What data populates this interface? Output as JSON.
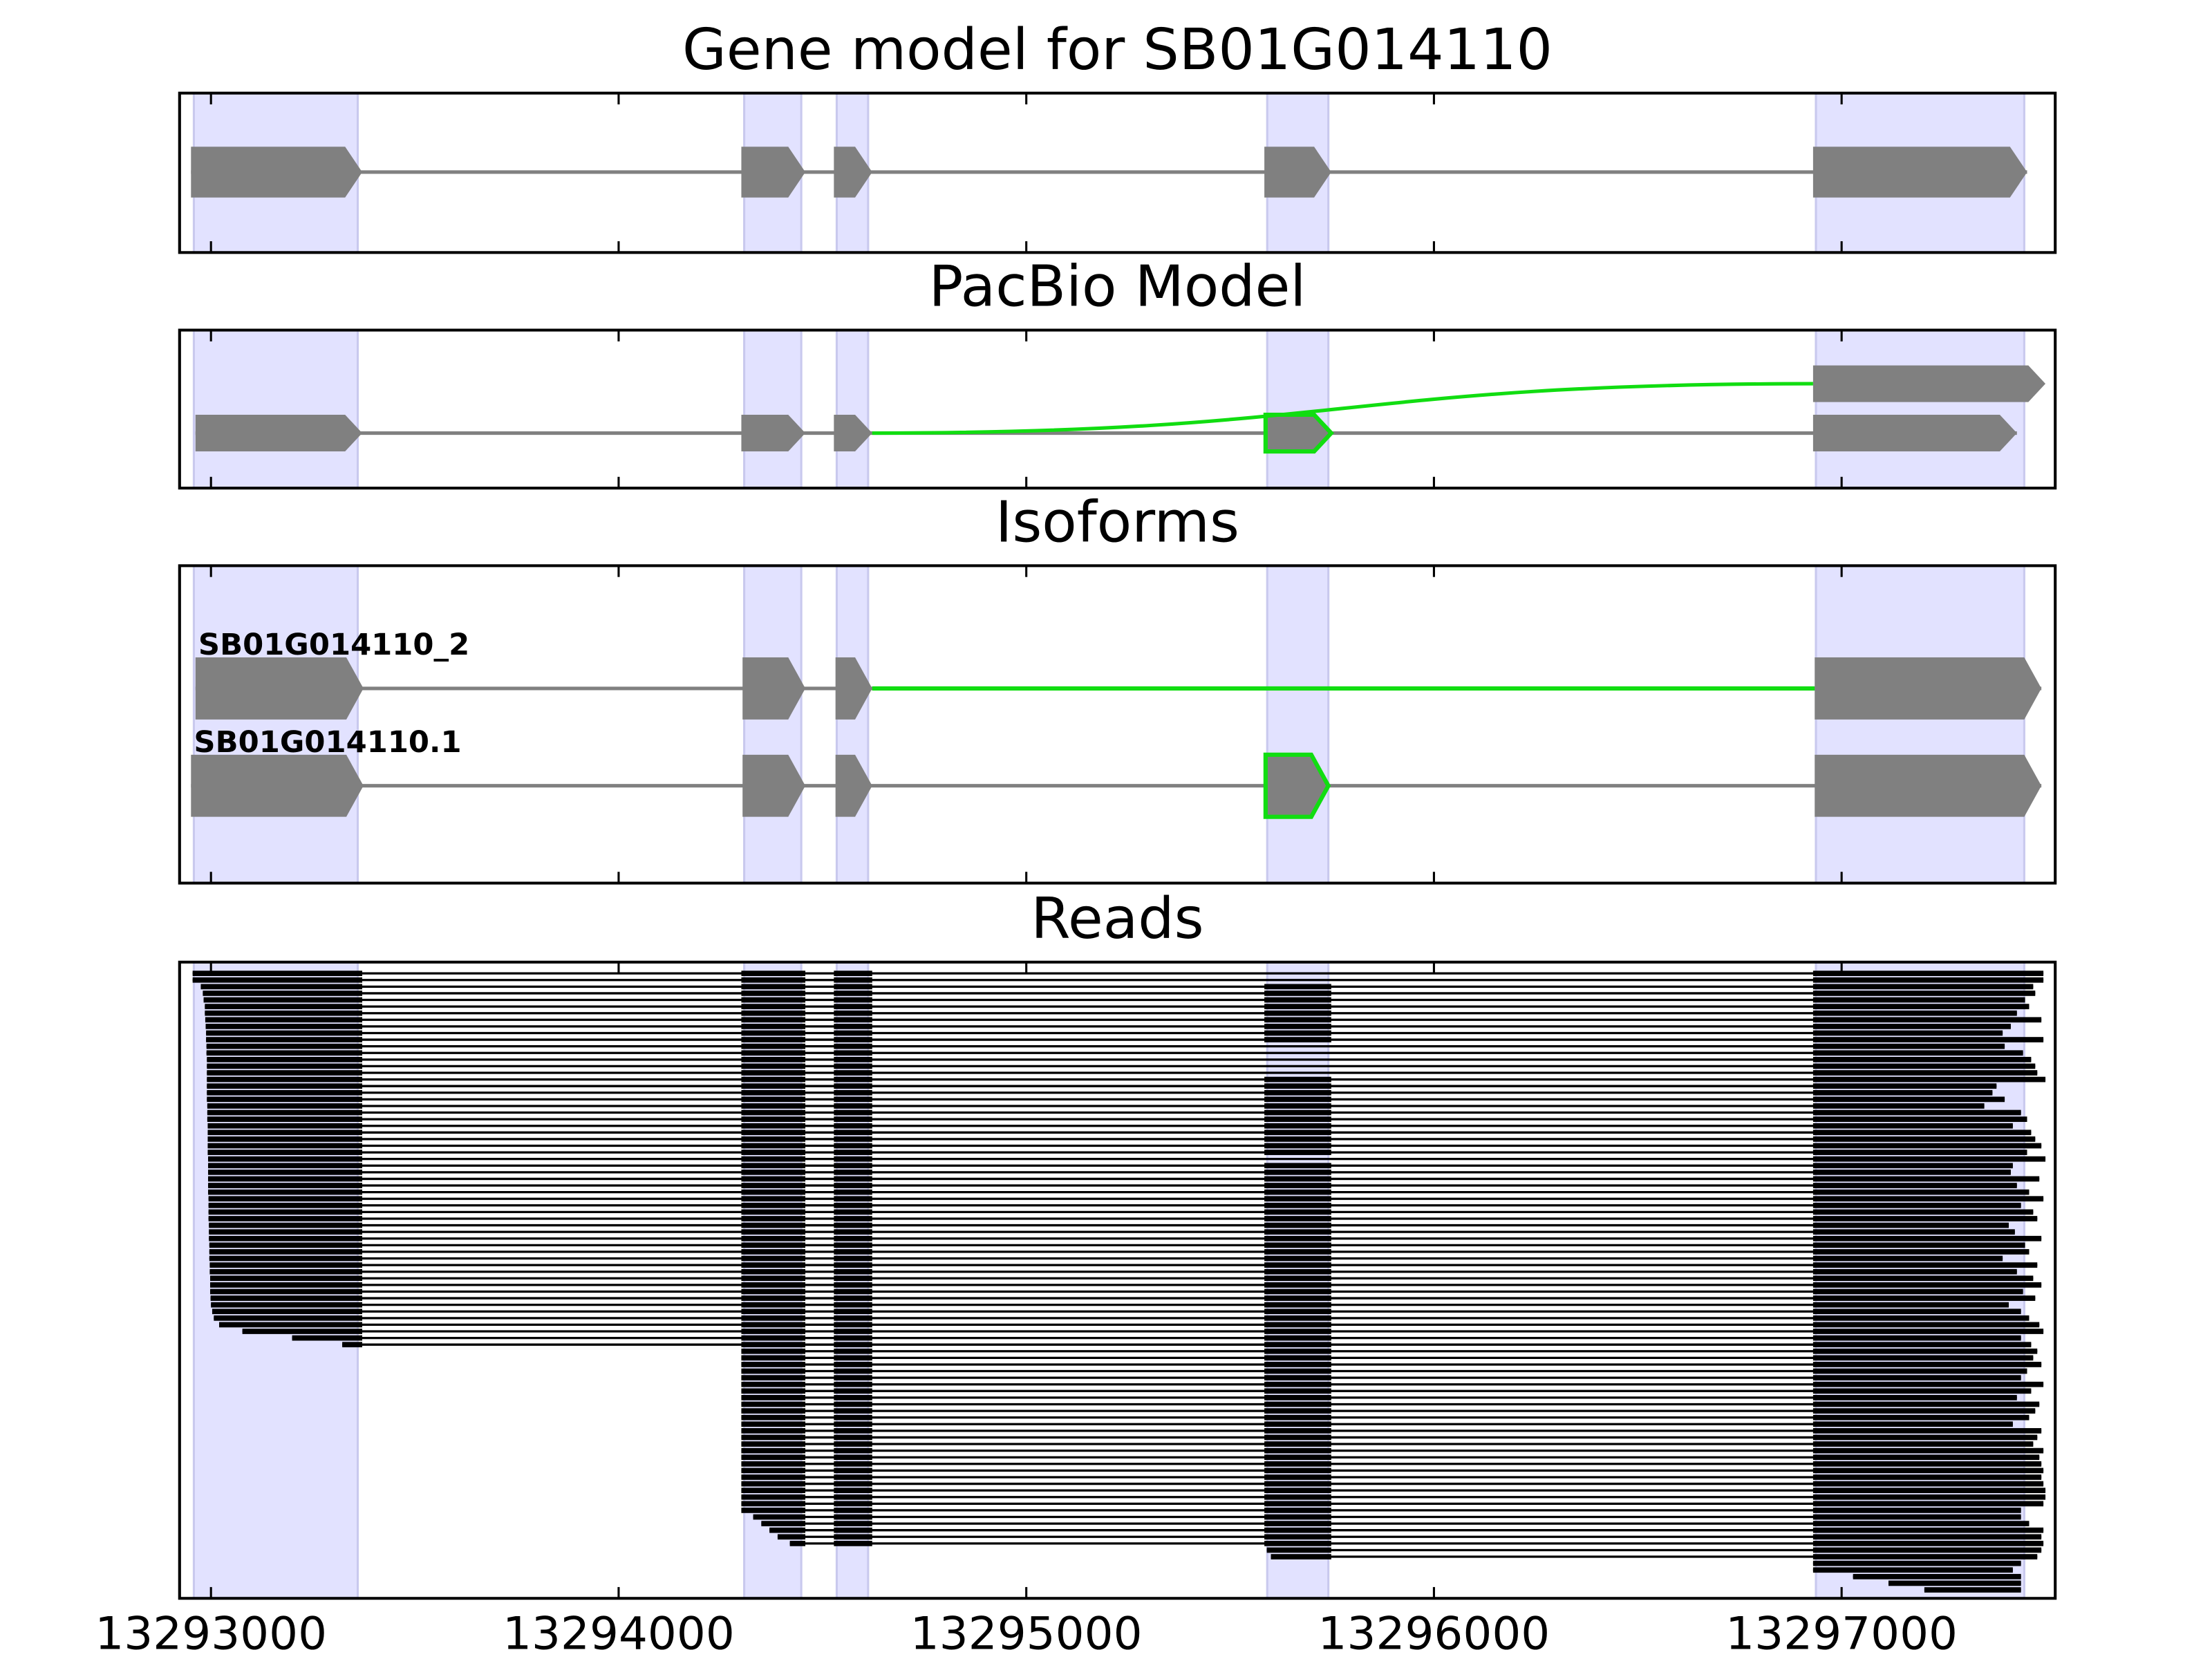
{
  "chart_data": {
    "type": "gene_tracks",
    "xlim": [
      13292923,
      13297524
    ],
    "xticks": [
      13293000,
      13294000,
      13295000,
      13296000,
      13297000
    ],
    "shade_color": "#e2e2ff",
    "exon_color": "#808080",
    "highlight_color": "#11dd11",
    "read_color": "#000000",
    "regions": [
      [
        13292958,
        13293360
      ],
      [
        13294308,
        13294448
      ],
      [
        13294535,
        13294612
      ],
      [
        13295591,
        13295741
      ],
      [
        13296937,
        13297448
      ]
    ],
    "panels": [
      {
        "title": "Gene model for SB01G014110",
        "tracks": [
          {
            "exons": [
              [
                13292951,
                13293371
              ],
              [
                13294301,
                13294458
              ],
              [
                13294528,
                13294622
              ],
              [
                13295584,
                13295748
              ],
              [
                13296930,
                13297455
              ]
            ]
          }
        ]
      },
      {
        "title": "PacBio Model",
        "tracks": [
          {
            "exons": [
              [
                13296930,
                13297500
              ]
            ]
          },
          {
            "exons": [
              [
                13292962,
                13293371
              ],
              [
                13294301,
                13294458
              ],
              [
                13294528,
                13294622
              ],
              [
                13295587,
                13295748
              ],
              [
                13296930,
                13297430
              ]
            ],
            "highlight_exons": [
              3
            ]
          }
        ],
        "junctions": [
          [
            13294622,
            13296930
          ]
        ]
      },
      {
        "title": "Isoforms",
        "tracks": [
          {
            "label": "SB01G014110_2",
            "exons": [
              [
                13292962,
                13293374
              ],
              [
                13294304,
                13294458
              ],
              [
                13294532,
                13294622
              ],
              [
                13296934,
                13297490
              ]
            ],
            "highlight_introns": [
              2
            ]
          },
          {
            "label": "SB01G014110.1",
            "exons": [
              [
                13292951,
                13293374
              ],
              [
                13294304,
                13294458
              ],
              [
                13294532,
                13294622
              ],
              [
                13295587,
                13295741
              ],
              [
                13296934,
                13297490
              ]
            ],
            "highlight_exons": [
              3
            ]
          }
        ]
      },
      {
        "title": "Reads",
        "reads": [
          [
            13292955,
            13297495,
            false
          ],
          [
            13292955,
            13297495,
            false
          ],
          [
            13292975,
            13297470,
            true
          ],
          [
            13292980,
            13297475,
            true
          ],
          [
            13292982,
            13297450,
            true
          ],
          [
            13292985,
            13297460,
            true
          ],
          [
            13292985,
            13297430,
            true
          ],
          [
            13292986,
            13297490,
            true
          ],
          [
            13292987,
            13297415,
            true
          ],
          [
            13292988,
            13297395,
            true
          ],
          [
            13292988,
            13297495,
            true
          ],
          [
            13292989,
            13297400,
            false
          ],
          [
            13292989,
            13297445,
            false
          ],
          [
            13292990,
            13297465,
            false
          ],
          [
            13292990,
            13297475,
            false
          ],
          [
            13292990,
            13297480,
            false
          ],
          [
            13292990,
            13297500,
            true
          ],
          [
            13292990,
            13297380,
            true
          ],
          [
            13292990,
            13297370,
            true
          ],
          [
            13292990,
            13297400,
            true
          ],
          [
            13292991,
            13297350,
            true
          ],
          [
            13292991,
            13297440,
            true
          ],
          [
            13292991,
            13297455,
            true
          ],
          [
            13292992,
            13297420,
            true
          ],
          [
            13292992,
            13297465,
            true
          ],
          [
            13292992,
            13297475,
            true
          ],
          [
            13292992,
            13297490,
            true
          ],
          [
            13292992,
            13297455,
            true
          ],
          [
            13292993,
            13297500,
            false
          ],
          [
            13292993,
            13297420,
            true
          ],
          [
            13292993,
            13297415,
            true
          ],
          [
            13292993,
            13297485,
            true
          ],
          [
            13292993,
            13297430,
            true
          ],
          [
            13292993,
            13297460,
            true
          ],
          [
            13292994,
            13297495,
            true
          ],
          [
            13292994,
            13297440,
            true
          ],
          [
            13292994,
            13297470,
            true
          ],
          [
            13292994,
            13297480,
            true
          ],
          [
            13292995,
            13297410,
            true
          ],
          [
            13292995,
            13297425,
            true
          ],
          [
            13292995,
            13297490,
            true
          ],
          [
            13292996,
            13297450,
            true
          ],
          [
            13292996,
            13297460,
            true
          ],
          [
            13292996,
            13297395,
            true
          ],
          [
            13292997,
            13297480,
            true
          ],
          [
            13292997,
            13297430,
            true
          ],
          [
            13292998,
            13297470,
            true
          ],
          [
            13292998,
            13297490,
            true
          ],
          [
            13292998,
            13297445,
            true
          ],
          [
            13292999,
            13297475,
            true
          ],
          [
            13293000,
            13297410,
            true
          ],
          [
            13293003,
            13297440,
            true
          ],
          [
            13293007,
            13297460,
            true
          ],
          [
            13293020,
            13297485,
            true
          ],
          [
            13293077,
            13297495,
            true
          ],
          [
            13293199,
            13297440,
            true
          ],
          [
            13293322,
            13297465,
            true
          ],
          [
            13294301,
            13297480,
            true
          ],
          [
            13294301,
            13297470,
            true
          ],
          [
            13294301,
            13297490,
            true
          ],
          [
            13294301,
            13297455,
            true
          ],
          [
            13294301,
            13297440,
            true
          ],
          [
            13294301,
            13297495,
            true
          ],
          [
            13294301,
            13297465,
            true
          ],
          [
            13294301,
            13297430,
            true
          ],
          [
            13294301,
            13297485,
            true
          ],
          [
            13294301,
            13297475,
            true
          ],
          [
            13294301,
            13297460,
            true
          ],
          [
            13294301,
            13297420,
            true
          ],
          [
            13294301,
            13297490,
            true
          ],
          [
            13294301,
            13297480,
            true
          ],
          [
            13294301,
            13297470,
            true
          ],
          [
            13294301,
            13297495,
            true
          ],
          [
            13294301,
            13297485,
            true
          ],
          [
            13294301,
            13297490,
            true
          ],
          [
            13294301,
            13297495,
            true
          ],
          [
            13294301,
            13297490,
            true
          ],
          [
            13294301,
            13297495,
            true
          ],
          [
            13294301,
            13297500,
            true
          ],
          [
            13294301,
            13297500,
            true
          ],
          [
            13294301,
            13297495,
            true
          ],
          [
            13294301,
            13297440,
            true
          ],
          [
            13294330,
            13297440,
            true
          ],
          [
            13294350,
            13297460,
            true
          ],
          [
            13294370,
            13297495,
            true
          ],
          [
            13294390,
            13297490,
            true
          ],
          [
            13294420,
            13297495,
            true
          ],
          [
            13295590,
            13297490,
            true
          ],
          [
            13295600,
            13297480,
            true
          ],
          [
            13296930,
            13297440,
            true
          ],
          [
            13296930,
            13297420,
            true
          ],
          [
            13297028,
            13297440,
            true
          ],
          [
            13297115,
            13297440,
            true
          ],
          [
            13297203,
            13297440,
            true
          ]
        ]
      }
    ]
  }
}
